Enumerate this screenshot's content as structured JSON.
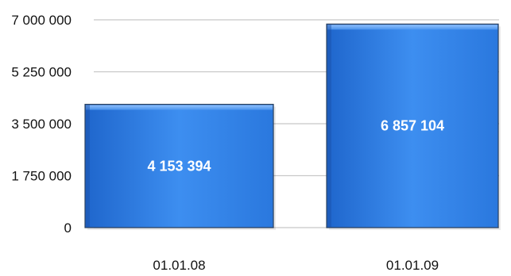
{
  "chart_data": {
    "type": "bar",
    "categories": [
      "01.01.08",
      "01.01.09"
    ],
    "values": [
      4153394,
      6857104
    ],
    "data_labels": [
      "4 153 394",
      "6 857 104"
    ],
    "yticks": [
      0,
      1750000,
      3500000,
      5250000,
      7000000
    ],
    "ytick_labels": [
      "0",
      "1 750 000",
      "3 500 000",
      "5 250 000",
      "7 000 000"
    ],
    "ylim": [
      0,
      7000000
    ],
    "grid": true,
    "colors": {
      "bar_light": "#5aa0f0",
      "bar_main": "#2f7fe6",
      "bar_dark": "#1a5fc0",
      "bar_edge": "#2a3f5c"
    }
  }
}
